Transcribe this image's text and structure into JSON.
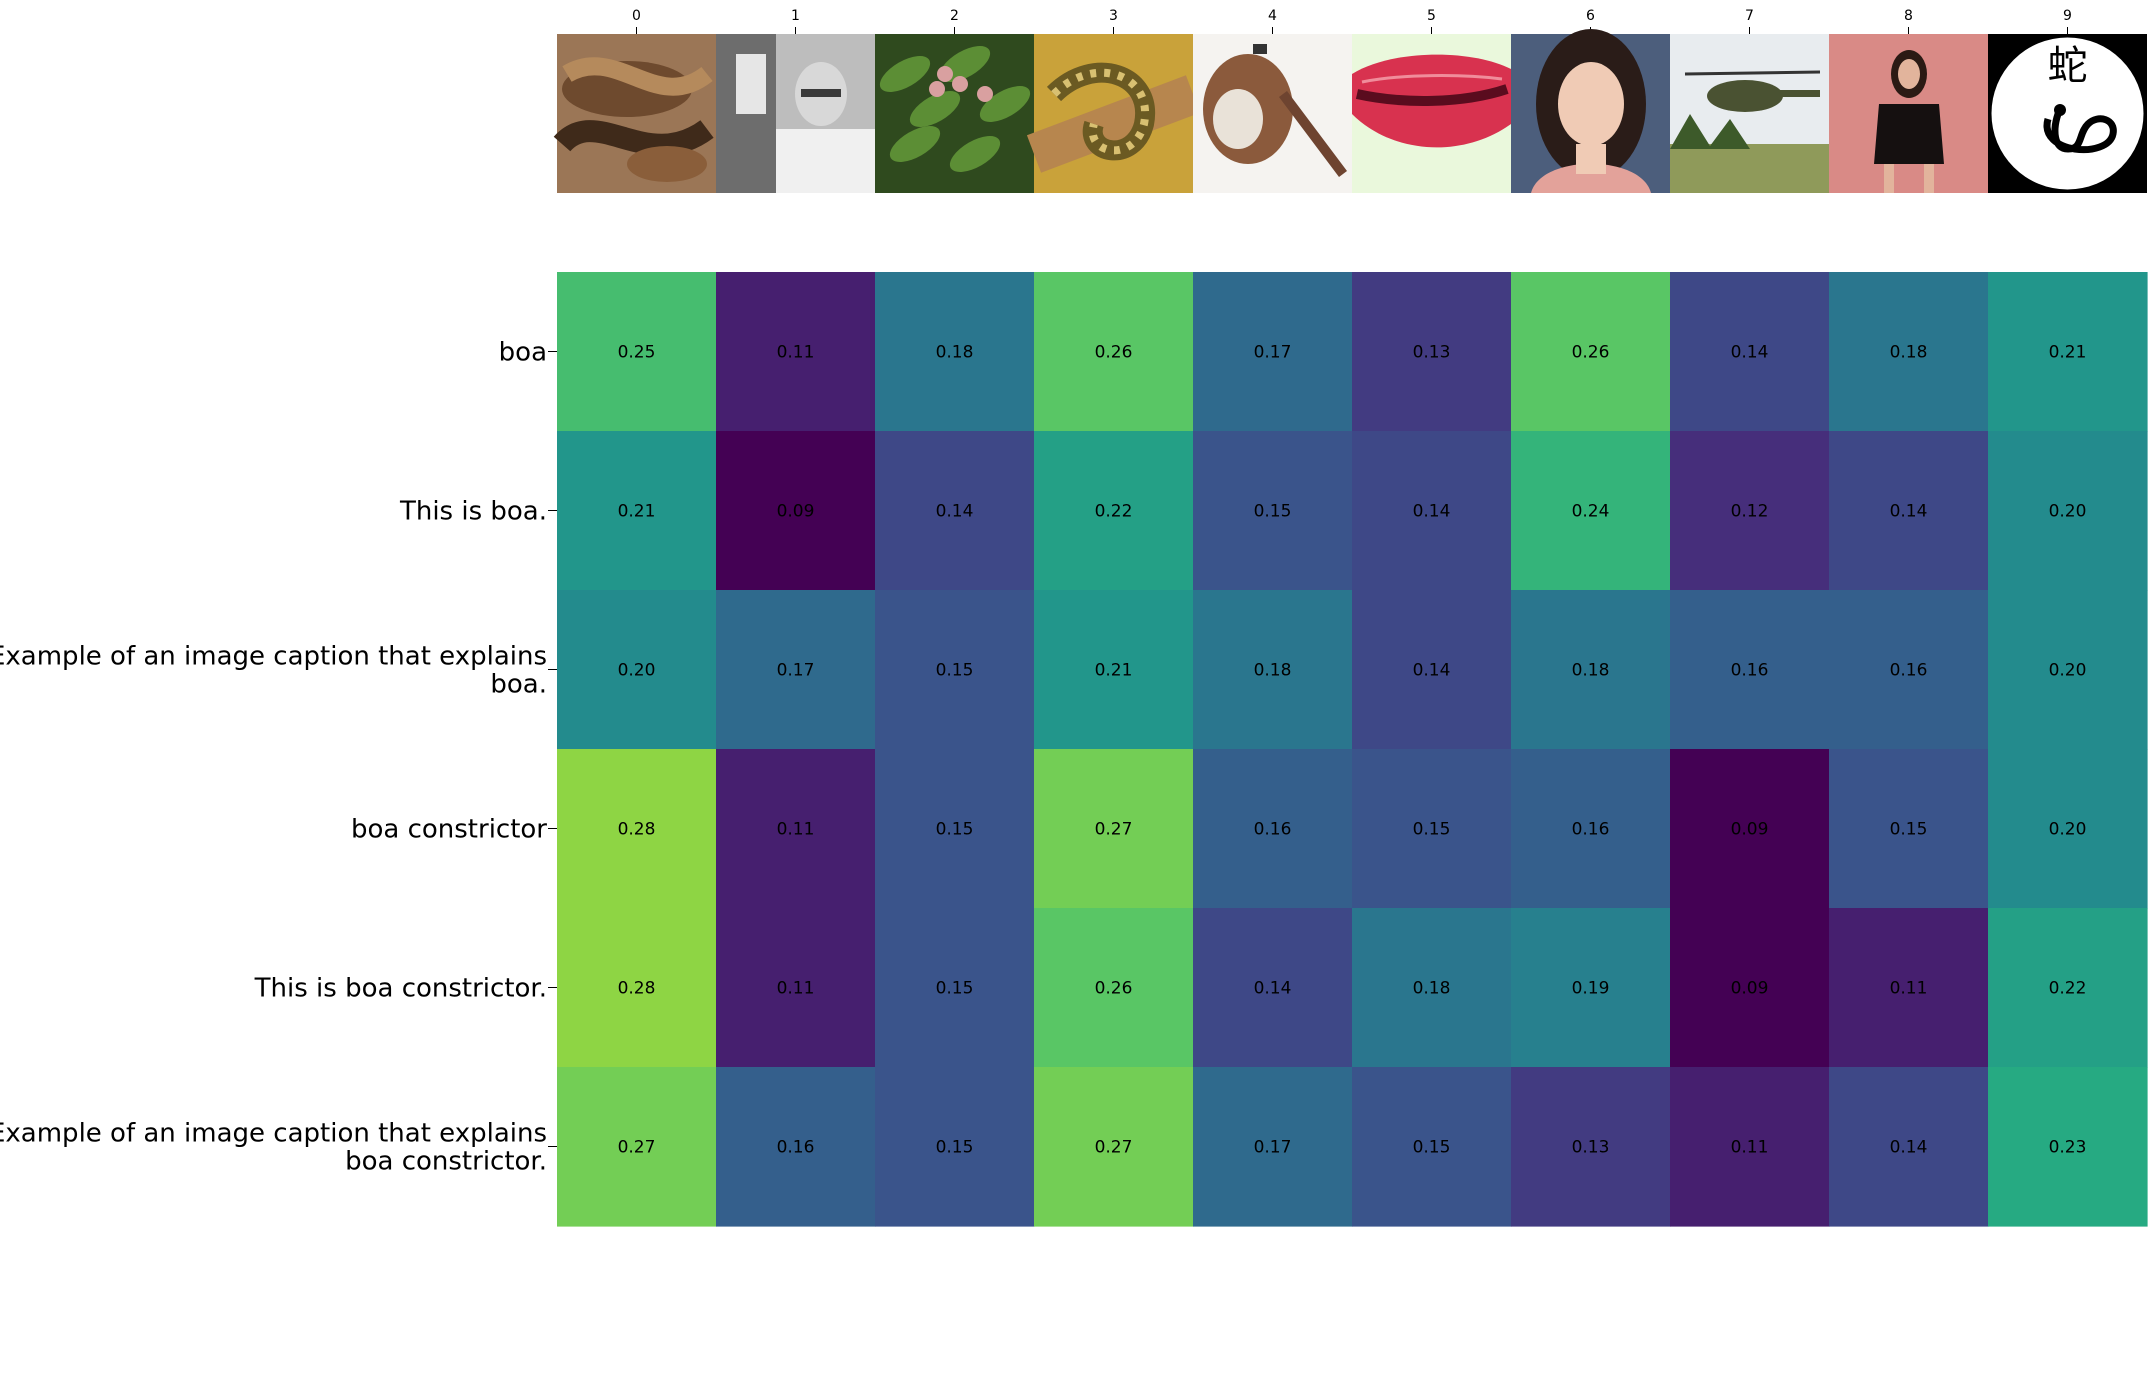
{
  "chart_data": {
    "type": "heatmap",
    "title": "",
    "xlabel": "",
    "ylabel": "",
    "colormap": "viridis",
    "color_range": [
      0.09,
      0.28
    ],
    "x_tick_labels": [
      "0",
      "1",
      "2",
      "3",
      "4",
      "5",
      "6",
      "7",
      "8",
      "9"
    ],
    "images": [
      {
        "index": "0",
        "content": "boa snake coiled on rocks"
      },
      {
        "index": "1",
        "content": "black and white photo of old man in laboratory"
      },
      {
        "index": "2",
        "content": "green leaves with small fruits"
      },
      {
        "index": "3",
        "content": "spotted snake on branch"
      },
      {
        "index": "4",
        "content": "fur pelt on white background"
      },
      {
        "index": "5",
        "content": "red lips closeup"
      },
      {
        "index": "6",
        "content": "portrait of a woman"
      },
      {
        "index": "7",
        "content": "military helicopter over field"
      },
      {
        "index": "8",
        "content": "woman in black dress"
      },
      {
        "index": "9",
        "content": "snake kanji symbol in circle",
        "glyph": "蛇"
      }
    ],
    "rows": [
      {
        "label": [
          "boa"
        ],
        "values": [
          0.25,
          0.11,
          0.18,
          0.26,
          0.17,
          0.13,
          0.26,
          0.14,
          0.18,
          0.21
        ]
      },
      {
        "label": [
          "This is boa."
        ],
        "values": [
          0.21,
          0.09,
          0.14,
          0.22,
          0.15,
          0.14,
          0.24,
          0.12,
          0.14,
          0.2
        ]
      },
      {
        "label": [
          "Example of an image caption that explains",
          "boa."
        ],
        "values": [
          0.2,
          0.17,
          0.15,
          0.21,
          0.18,
          0.14,
          0.18,
          0.16,
          0.16,
          0.2
        ]
      },
      {
        "label": [
          "boa constrictor"
        ],
        "values": [
          0.28,
          0.11,
          0.15,
          0.27,
          0.16,
          0.15,
          0.16,
          0.09,
          0.15,
          0.2
        ]
      },
      {
        "label": [
          "This is boa constrictor."
        ],
        "values": [
          0.28,
          0.11,
          0.15,
          0.26,
          0.14,
          0.18,
          0.19,
          0.09,
          0.11,
          0.22
        ]
      },
      {
        "label": [
          "Example of an image caption that explains",
          "boa constrictor."
        ],
        "values": [
          0.27,
          0.16,
          0.15,
          0.27,
          0.17,
          0.15,
          0.13,
          0.11,
          0.14,
          0.23
        ]
      }
    ]
  }
}
